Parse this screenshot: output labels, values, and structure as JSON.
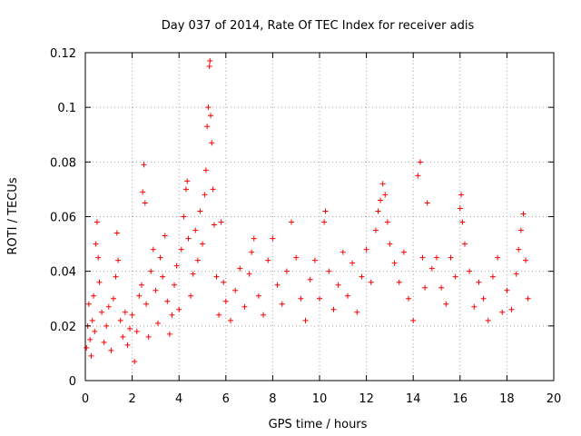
{
  "chart_data": {
    "type": "scatter",
    "title": "Day 037 of 2014, Rate Of TEC Index for receiver adis",
    "xlabel": "GPS time / hours",
    "ylabel": "ROTI / TECUs",
    "xlim": [
      0,
      20
    ],
    "ylim": [
      0,
      0.12
    ],
    "xticks": [
      0,
      2,
      4,
      6,
      8,
      10,
      12,
      14,
      16,
      18,
      20
    ],
    "yticks": [
      0,
      0.02,
      0.04,
      0.06,
      0.08,
      0.1,
      0.12
    ],
    "xtick_labels": [
      "0",
      "2",
      "4",
      "6",
      "8",
      "10",
      "12",
      "14",
      "16",
      "18",
      "20"
    ],
    "ytick_labels": [
      "0",
      "0.02",
      "0.04",
      "0.06",
      "0.08",
      "0.1",
      "0.12"
    ],
    "grid": true,
    "marker": "+",
    "series": [
      {
        "name": "ROTI",
        "color": "#ff0000",
        "points": [
          [
            0.05,
            0.012
          ],
          [
            0.1,
            0.02
          ],
          [
            0.15,
            0.028
          ],
          [
            0.2,
            0.015
          ],
          [
            0.25,
            0.009
          ],
          [
            0.3,
            0.022
          ],
          [
            0.35,
            0.031
          ],
          [
            0.4,
            0.018
          ],
          [
            0.45,
            0.05
          ],
          [
            0.5,
            0.058
          ],
          [
            0.55,
            0.045
          ],
          [
            0.6,
            0.036
          ],
          [
            0.7,
            0.025
          ],
          [
            0.8,
            0.014
          ],
          [
            0.9,
            0.02
          ],
          [
            1.0,
            0.027
          ],
          [
            1.1,
            0.011
          ],
          [
            1.2,
            0.03
          ],
          [
            1.3,
            0.038
          ],
          [
            1.35,
            0.054
          ],
          [
            1.4,
            0.044
          ],
          [
            1.5,
            0.022
          ],
          [
            1.6,
            0.016
          ],
          [
            1.7,
            0.025
          ],
          [
            1.8,
            0.013
          ],
          [
            1.9,
            0.019
          ],
          [
            2.0,
            0.024
          ],
          [
            2.1,
            0.007
          ],
          [
            2.2,
            0.018
          ],
          [
            2.3,
            0.031
          ],
          [
            2.4,
            0.035
          ],
          [
            2.45,
            0.069
          ],
          [
            2.5,
            0.079
          ],
          [
            2.55,
            0.065
          ],
          [
            2.6,
            0.028
          ],
          [
            2.7,
            0.016
          ],
          [
            2.8,
            0.04
          ],
          [
            2.9,
            0.048
          ],
          [
            3.0,
            0.033
          ],
          [
            3.1,
            0.021
          ],
          [
            3.2,
            0.045
          ],
          [
            3.3,
            0.038
          ],
          [
            3.4,
            0.053
          ],
          [
            3.5,
            0.029
          ],
          [
            3.6,
            0.017
          ],
          [
            3.7,
            0.024
          ],
          [
            3.8,
            0.035
          ],
          [
            3.9,
            0.042
          ],
          [
            4.0,
            0.026
          ],
          [
            4.1,
            0.048
          ],
          [
            4.2,
            0.06
          ],
          [
            4.3,
            0.07
          ],
          [
            4.35,
            0.073
          ],
          [
            4.4,
            0.052
          ],
          [
            4.5,
            0.031
          ],
          [
            4.6,
            0.039
          ],
          [
            4.7,
            0.055
          ],
          [
            4.8,
            0.044
          ],
          [
            4.9,
            0.062
          ],
          [
            5.0,
            0.05
          ],
          [
            5.1,
            0.068
          ],
          [
            5.15,
            0.077
          ],
          [
            5.2,
            0.093
          ],
          [
            5.25,
            0.1
          ],
          [
            5.3,
            0.115
          ],
          [
            5.32,
            0.117
          ],
          [
            5.35,
            0.097
          ],
          [
            5.4,
            0.087
          ],
          [
            5.45,
            0.07
          ],
          [
            5.5,
            0.057
          ],
          [
            5.6,
            0.038
          ],
          [
            5.7,
            0.024
          ],
          [
            5.8,
            0.058
          ],
          [
            5.9,
            0.036
          ],
          [
            6.0,
            0.029
          ],
          [
            6.2,
            0.022
          ],
          [
            6.4,
            0.033
          ],
          [
            6.6,
            0.041
          ],
          [
            6.8,
            0.027
          ],
          [
            7.0,
            0.039
          ],
          [
            7.1,
            0.047
          ],
          [
            7.2,
            0.052
          ],
          [
            7.4,
            0.031
          ],
          [
            7.6,
            0.024
          ],
          [
            7.8,
            0.044
          ],
          [
            8.0,
            0.052
          ],
          [
            8.2,
            0.035
          ],
          [
            8.4,
            0.028
          ],
          [
            8.6,
            0.04
          ],
          [
            8.8,
            0.058
          ],
          [
            9.0,
            0.045
          ],
          [
            9.2,
            0.03
          ],
          [
            9.4,
            0.022
          ],
          [
            9.6,
            0.037
          ],
          [
            9.8,
            0.044
          ],
          [
            10.0,
            0.03
          ],
          [
            10.2,
            0.058
          ],
          [
            10.25,
            0.062
          ],
          [
            10.4,
            0.04
          ],
          [
            10.6,
            0.026
          ],
          [
            10.8,
            0.035
          ],
          [
            11.0,
            0.047
          ],
          [
            11.2,
            0.031
          ],
          [
            11.4,
            0.043
          ],
          [
            11.6,
            0.025
          ],
          [
            11.8,
            0.038
          ],
          [
            12.0,
            0.048
          ],
          [
            12.2,
            0.036
          ],
          [
            12.4,
            0.055
          ],
          [
            12.5,
            0.062
          ],
          [
            12.6,
            0.066
          ],
          [
            12.7,
            0.072
          ],
          [
            12.8,
            0.068
          ],
          [
            12.9,
            0.058
          ],
          [
            13.0,
            0.05
          ],
          [
            13.2,
            0.043
          ],
          [
            13.4,
            0.036
          ],
          [
            13.6,
            0.047
          ],
          [
            13.8,
            0.03
          ],
          [
            14.0,
            0.022
          ],
          [
            14.2,
            0.075
          ],
          [
            14.3,
            0.08
          ],
          [
            14.4,
            0.045
          ],
          [
            14.5,
            0.034
          ],
          [
            14.6,
            0.065
          ],
          [
            14.8,
            0.041
          ],
          [
            15.0,
            0.045
          ],
          [
            15.2,
            0.034
          ],
          [
            15.4,
            0.028
          ],
          [
            15.6,
            0.045
          ],
          [
            15.8,
            0.038
          ],
          [
            16.0,
            0.063
          ],
          [
            16.05,
            0.068
          ],
          [
            16.1,
            0.058
          ],
          [
            16.2,
            0.05
          ],
          [
            16.4,
            0.04
          ],
          [
            16.6,
            0.027
          ],
          [
            16.8,
            0.036
          ],
          [
            17.0,
            0.03
          ],
          [
            17.2,
            0.022
          ],
          [
            17.4,
            0.038
          ],
          [
            17.6,
            0.045
          ],
          [
            17.8,
            0.025
          ],
          [
            18.0,
            0.033
          ],
          [
            18.2,
            0.026
          ],
          [
            18.4,
            0.039
          ],
          [
            18.5,
            0.048
          ],
          [
            18.6,
            0.055
          ],
          [
            18.7,
            0.061
          ],
          [
            18.8,
            0.044
          ],
          [
            18.9,
            0.03
          ]
        ]
      }
    ]
  }
}
